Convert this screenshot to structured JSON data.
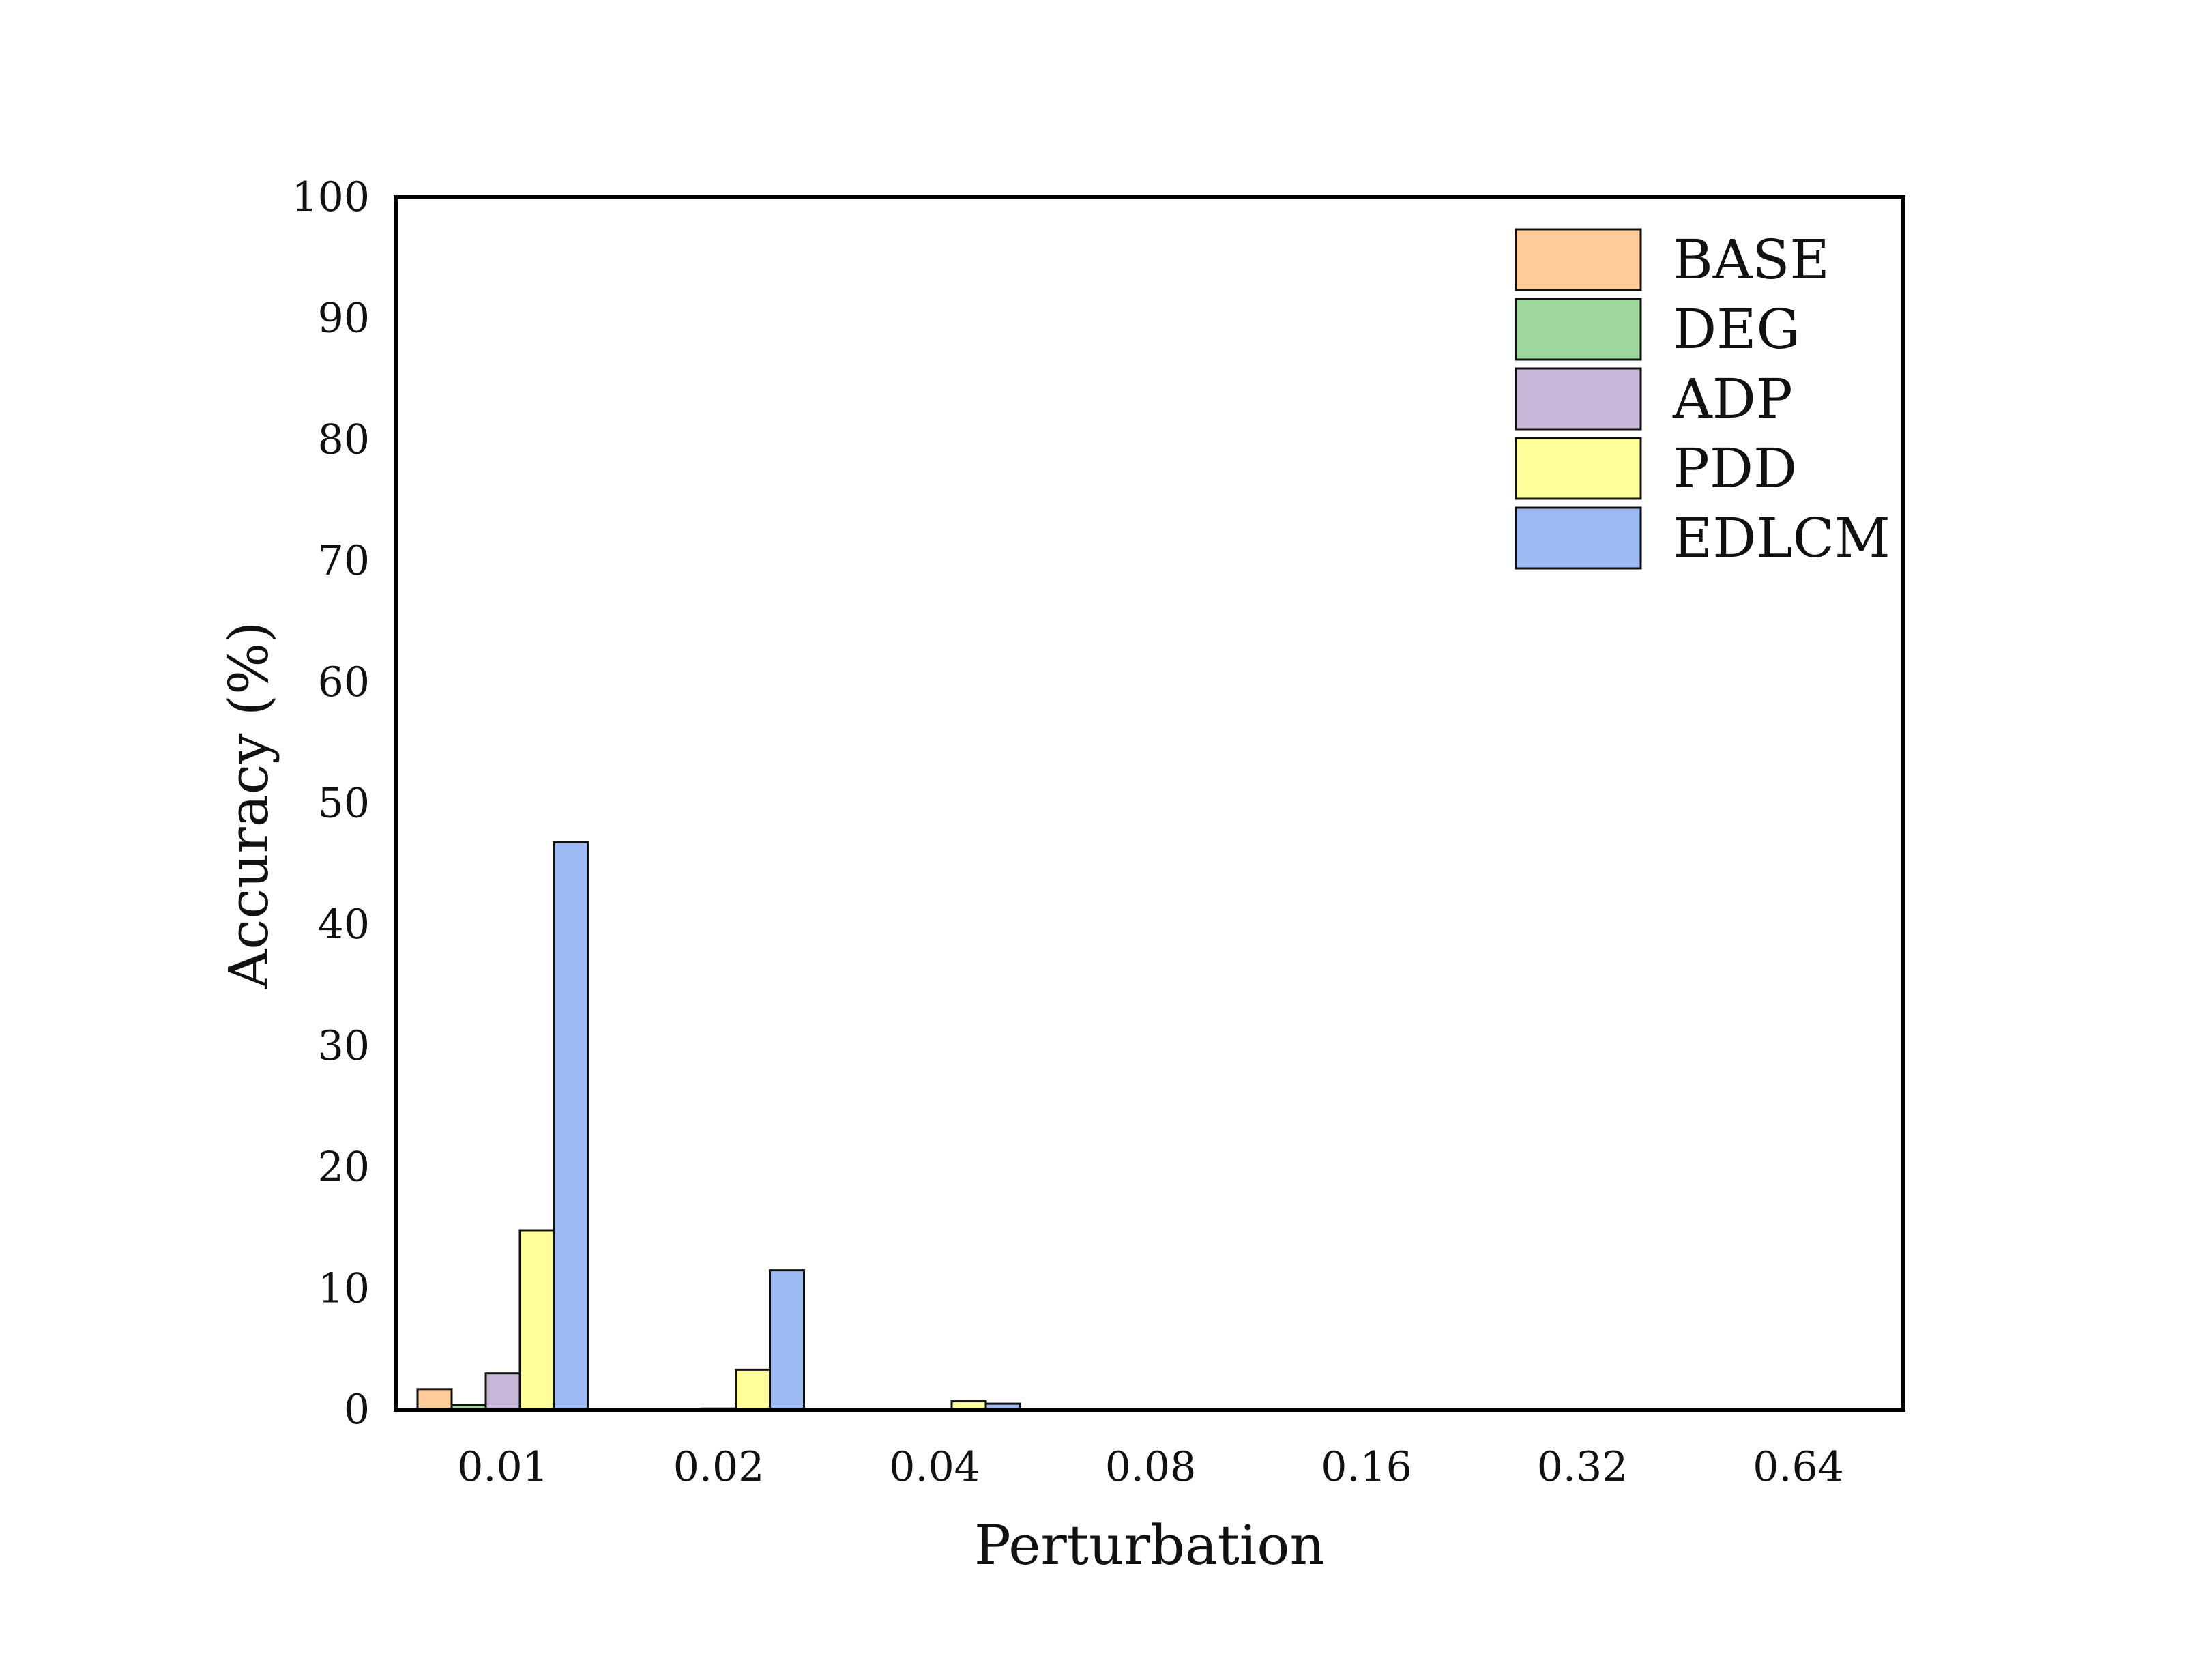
{
  "chart_data": {
    "type": "bar",
    "xlabel": "Perturbation",
    "ylabel": "Accuracy  (%)",
    "categories": [
      "0.01",
      "0.02",
      "0.04",
      "0.08",
      "0.16",
      "0.32",
      "0.64"
    ],
    "ylim": [
      0,
      100
    ],
    "yticks": [
      "0",
      "10",
      "20",
      "30",
      "40",
      "50",
      "60",
      "70",
      "80",
      "90",
      "100"
    ],
    "legend_position": "top-right",
    "grid": false,
    "series": [
      {
        "name": "BASE",
        "color": "#FFCC99",
        "values": [
          1.7,
          0.0,
          0.0,
          0.0,
          0.0,
          0.0,
          0.0
        ]
      },
      {
        "name": "DEG",
        "color": "#9ED79E",
        "values": [
          0.4,
          0.0,
          0.0,
          0.0,
          0.0,
          0.0,
          0.0
        ]
      },
      {
        "name": "ADP",
        "color": "#C8B7D9",
        "values": [
          3.0,
          0.1,
          0.0,
          0.0,
          0.0,
          0.0,
          0.0
        ]
      },
      {
        "name": "PDD",
        "color": "#FFFF99",
        "values": [
          14.8,
          3.3,
          0.7,
          0.0,
          0.0,
          0.0,
          0.0
        ]
      },
      {
        "name": "EDLCM",
        "color": "#9DBAF5",
        "values": [
          46.8,
          11.5,
          0.5,
          0.0,
          0.0,
          0.0,
          0.0
        ]
      }
    ]
  }
}
